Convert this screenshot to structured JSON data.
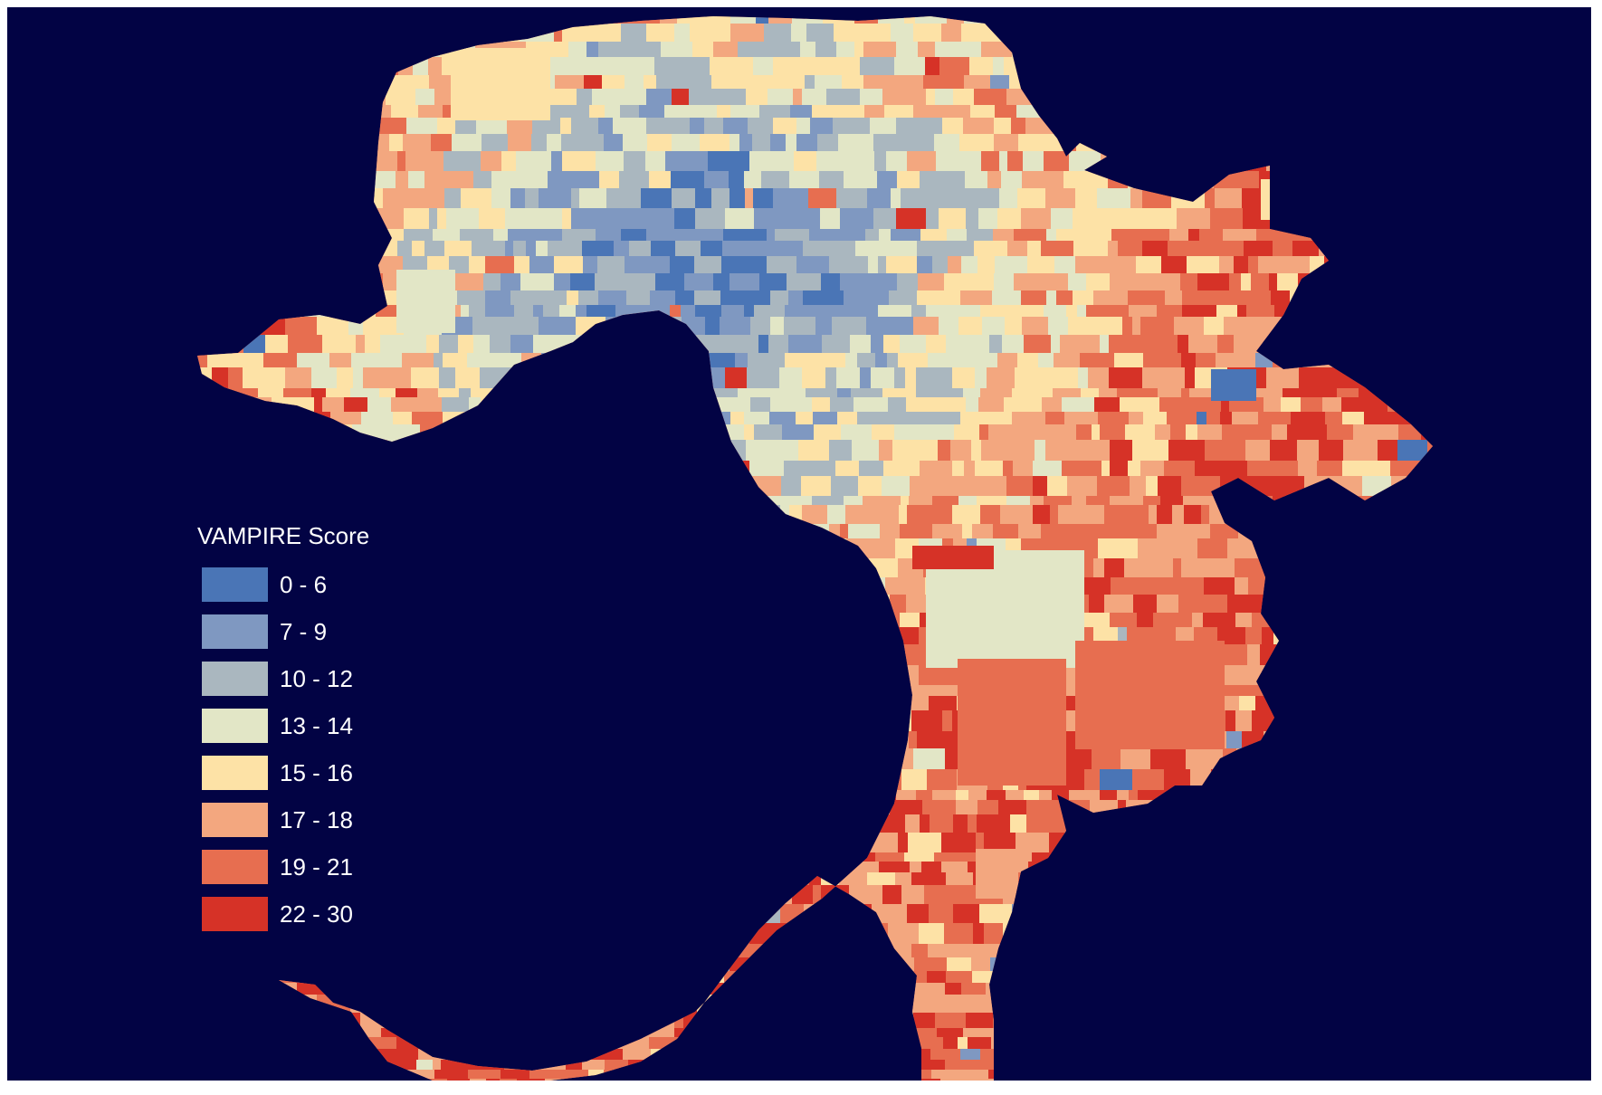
{
  "map": {
    "background": "#020344",
    "legend": {
      "title": "VAMPIRE Score",
      "classes": [
        {
          "label": "0 - 6",
          "color": "#4a75b6"
        },
        {
          "label": "7 - 9",
          "color": "#7f98c1"
        },
        {
          "label": "10 - 12",
          "color": "#aab7bf"
        },
        {
          "label": "13 - 14",
          "color": "#e2e6c6"
        },
        {
          "label": "15 - 16",
          "color": "#fde2a6"
        },
        {
          "label": "17 - 18",
          "color": "#f3a77f"
        },
        {
          "label": "19 - 21",
          "color": "#e76e50"
        },
        {
          "label": "22 - 30",
          "color": "#d63227"
        }
      ]
    }
  }
}
